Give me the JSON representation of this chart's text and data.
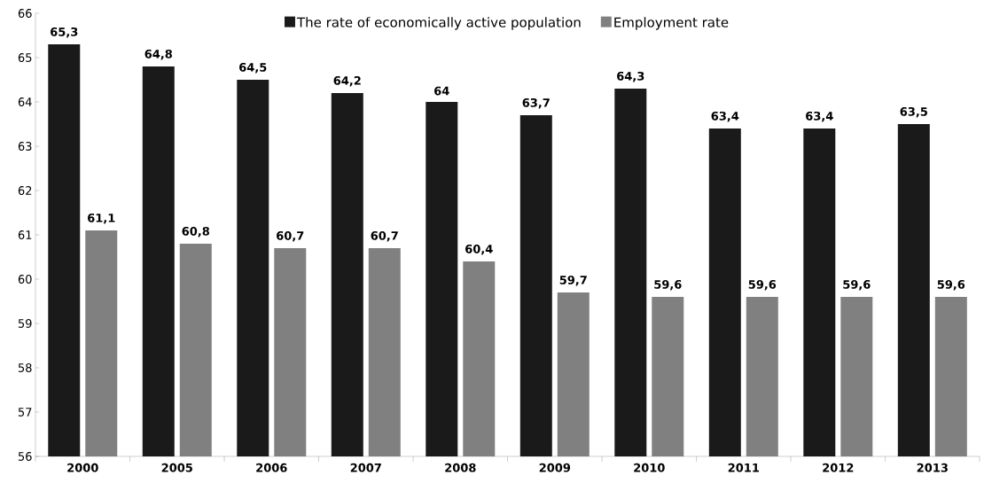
{
  "chart_data": {
    "type": "bar",
    "categories": [
      "2000",
      "2005",
      "2006",
      "2007",
      "2008",
      "2009",
      "2010",
      "2011",
      "2012",
      "2013"
    ],
    "series": [
      {
        "name": "The rate of economically active population",
        "color": "#1a1a1a",
        "values": [
          65.3,
          64.8,
          64.5,
          64.2,
          64,
          63.7,
          64.3,
          63.4,
          63.4,
          63.5
        ],
        "value_labels": [
          "65,3",
          "64,8",
          "64,5",
          "64,2",
          "64",
          "63,7",
          "64,3",
          "63,4",
          "63,4",
          "63,5"
        ]
      },
      {
        "name": "Employment rate",
        "color": "#808080",
        "values": [
          61.1,
          60.8,
          60.7,
          60.7,
          60.4,
          59.7,
          59.6,
          59.6,
          59.6,
          59.6
        ],
        "value_labels": [
          "61,1",
          "60,8",
          "60,7",
          "60,7",
          "60,4",
          "59,7",
          "59,6",
          "59,6",
          "59,6",
          "59,6"
        ]
      }
    ],
    "ylim": [
      56,
      66
    ],
    "yticks": [
      56,
      57,
      58,
      59,
      60,
      61,
      62,
      63,
      64,
      65,
      66
    ],
    "grid": false,
    "legend": "top"
  }
}
